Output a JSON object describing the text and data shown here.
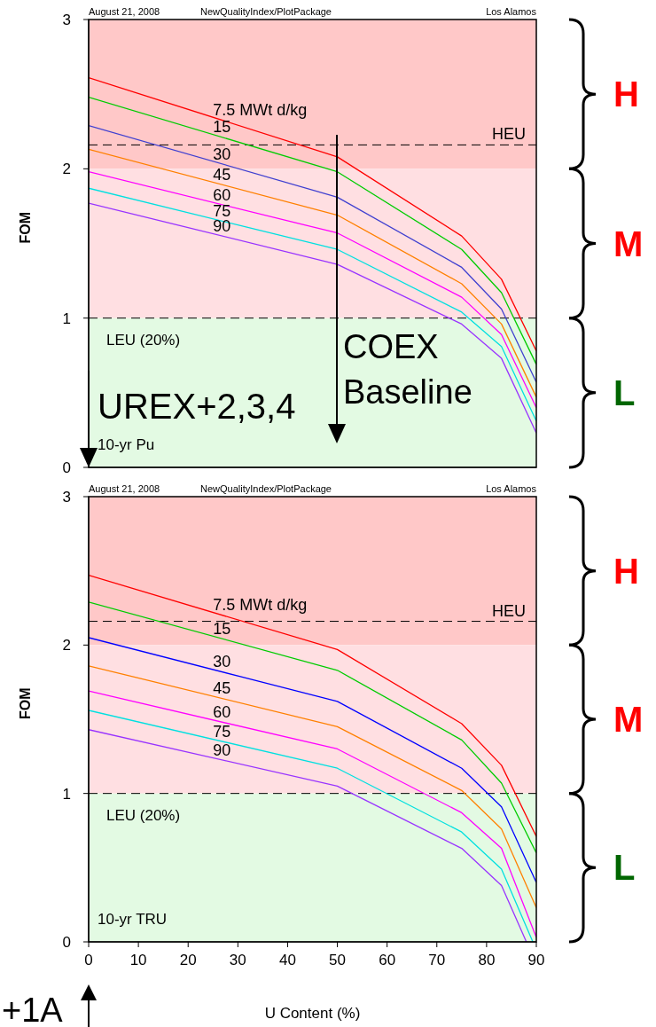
{
  "chart_data": [
    {
      "type": "line",
      "ylabel": "FOM",
      "xlim": [
        0,
        90
      ],
      "ylim": [
        0,
        3
      ],
      "xticks": [
        0,
        10,
        20,
        30,
        40,
        50,
        60,
        70,
        80,
        90
      ],
      "yticks": [
        0,
        1,
        2,
        3
      ],
      "tick_labels": "y",
      "x": [
        0,
        50,
        75,
        83,
        90
      ],
      "series": [
        {
          "name": "7.5 MWt d/kg",
          "color": "#ff0000",
          "values": [
            2.61,
            2.08,
            1.55,
            1.26,
            0.78
          ]
        },
        {
          "name": "15",
          "color": "#00cc00",
          "values": [
            2.48,
            1.98,
            1.46,
            1.17,
            0.69
          ]
        },
        {
          "name": "30",
          "color": "#4040d0",
          "values": [
            2.29,
            1.81,
            1.34,
            1.06,
            0.57
          ]
        },
        {
          "name": "45",
          "color": "#ff8000",
          "values": [
            2.13,
            1.69,
            1.23,
            0.96,
            0.47
          ]
        },
        {
          "name": "60",
          "color": "#ff00ff",
          "values": [
            1.98,
            1.57,
            1.14,
            0.89,
            0.4
          ]
        },
        {
          "name": "75",
          "color": "#00e0e0",
          "values": [
            1.87,
            1.46,
            1.04,
            0.81,
            0.31
          ]
        },
        {
          "name": "90",
          "color": "#9933ff",
          "values": [
            1.77,
            1.36,
            0.96,
            0.73,
            0.23
          ]
        }
      ],
      "bands": [
        {
          "axis": "y",
          "from": 2,
          "to": 3,
          "label": "H",
          "color": "#ffc8c8"
        },
        {
          "axis": "y",
          "from": 1,
          "to": 2,
          "label": "M",
          "color": "#ffdfe2"
        },
        {
          "axis": "y",
          "from": 0,
          "to": 1,
          "label": "L",
          "color": "#e3fae3"
        }
      ],
      "ref_lines": [
        {
          "axis": "y",
          "value": 2.16,
          "label": "HEU",
          "line_style": "dashed"
        },
        {
          "axis": "y",
          "value": 1,
          "label": "LEU (20%)",
          "line_style": "dashed"
        }
      ],
      "annotations": [
        "August 21, 2008",
        "NewQualityIndex/PlotPackage",
        "Los Alamos",
        "10-yr Pu",
        "UREX+2,3,4",
        "COEX Baseline"
      ]
    },
    {
      "type": "line",
      "xlabel": "U Content (%)",
      "ylabel": "FOM",
      "xlim": [
        0,
        90
      ],
      "ylim": [
        0,
        3
      ],
      "xticks": [
        0,
        10,
        20,
        30,
        40,
        50,
        60,
        70,
        80,
        90
      ],
      "yticks": [
        0,
        1,
        2,
        3
      ],
      "series": [
        {
          "name": "7.5 MWt d/kg",
          "color": "#ff0000",
          "x": [
            0,
            50,
            75,
            83,
            90
          ],
          "values": [
            2.47,
            1.97,
            1.47,
            1.19,
            0.71
          ]
        },
        {
          "name": "15",
          "color": "#00cc00",
          "x": [
            0,
            50,
            75,
            83,
            90
          ],
          "values": [
            2.29,
            1.83,
            1.36,
            1.07,
            0.6
          ]
        },
        {
          "name": "30",
          "color": "#0000ff",
          "x": [
            0,
            50,
            75,
            83,
            90
          ],
          "values": [
            2.05,
            1.62,
            1.17,
            0.91,
            0.4
          ]
        },
        {
          "name": "45",
          "color": "#ff8000",
          "x": [
            0,
            50,
            75,
            83,
            90
          ],
          "values": [
            1.86,
            1.45,
            1.02,
            0.76,
            0.23
          ]
        },
        {
          "name": "60",
          "color": "#ff00ff",
          "x": [
            0,
            50,
            75,
            83,
            90
          ],
          "values": [
            1.69,
            1.3,
            0.87,
            0.63,
            0.03
          ]
        },
        {
          "name": "75",
          "color": "#00e0e0",
          "x": [
            0,
            50,
            75,
            83,
            89.3
          ],
          "values": [
            1.56,
            1.17,
            0.74,
            0.49,
            0
          ]
        },
        {
          "name": "90",
          "color": "#9933ff",
          "x": [
            0,
            50,
            75,
            83,
            88
          ],
          "values": [
            1.43,
            1.05,
            0.63,
            0.38,
            0
          ]
        }
      ],
      "bands": [
        {
          "axis": "y",
          "from": 2,
          "to": 3,
          "label": "H",
          "color": "#ffc8c8"
        },
        {
          "axis": "y",
          "from": 1,
          "to": 2,
          "label": "M",
          "color": "#ffdfe2"
        },
        {
          "axis": "y",
          "from": 0,
          "to": 1,
          "label": "L",
          "color": "#e3fae3"
        }
      ],
      "ref_lines": [
        {
          "axis": "y",
          "value": 2.16,
          "label": "HEU",
          "line_style": "dashed"
        },
        {
          "axis": "y",
          "value": 1,
          "label": "LEU (20%)",
          "line_style": "dashed"
        }
      ],
      "annotations": [
        "August 21, 2008",
        "NewQualityIndex/PlotPackage",
        "Los Alamos",
        "10-yr TRU",
        "+1A"
      ]
    }
  ]
}
